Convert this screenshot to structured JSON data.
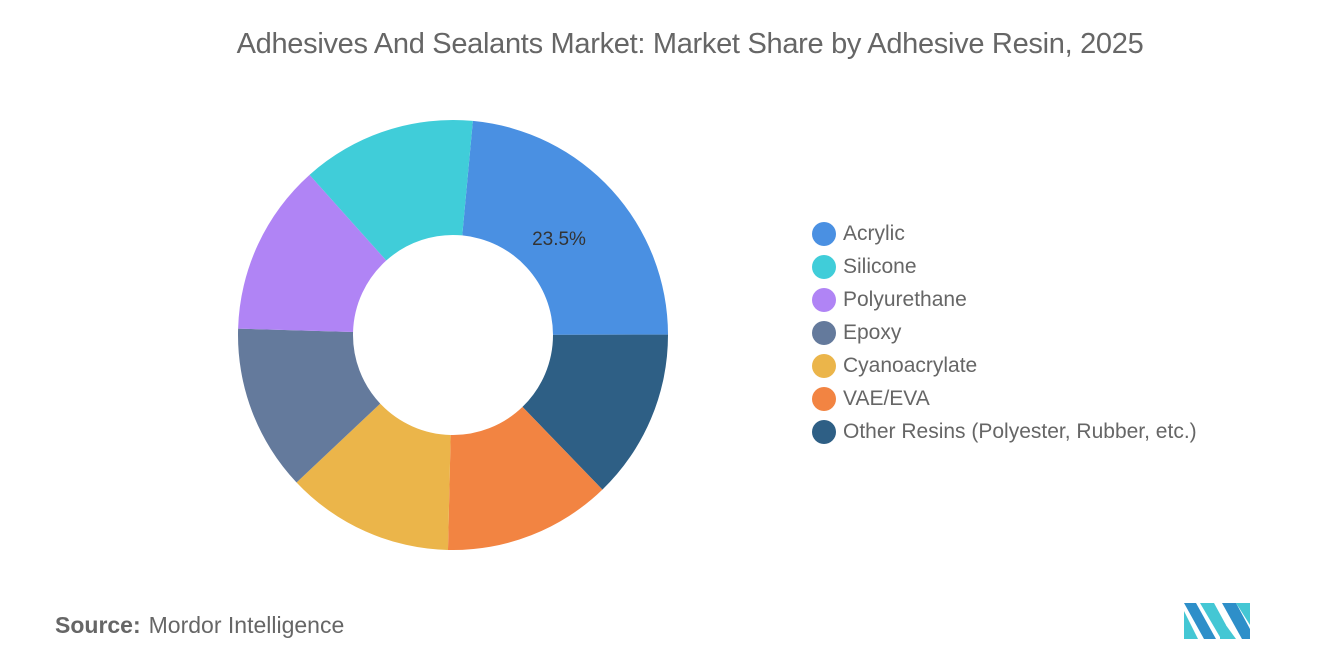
{
  "title": "Adhesives And Sealants Market: Market Share by Adhesive Resin, 2025",
  "source": {
    "label": "Source:",
    "value": "Mordor Intelligence"
  },
  "logo": {
    "name": "Mordor Intelligence logo",
    "colors": [
      "#2e8fc9",
      "#44c7d4"
    ]
  },
  "chart_data": {
    "type": "pie",
    "subtype": "donut",
    "title": "Adhesives And Sealants Market: Market Share by Adhesive Resin, 2025",
    "categories": [
      "Acrylic",
      "Silicone",
      "Polyurethane",
      "Epoxy",
      "Cyanoacrylate",
      "VAE/EVA",
      "Other Resins (Polyester, Rubber, etc.)"
    ],
    "values": [
      23.5,
      13.1,
      12.9,
      12.5,
      12.6,
      12.6,
      12.8
    ],
    "unit": "%",
    "colors": [
      "#4a90e2",
      "#40cdd9",
      "#b084f5",
      "#647a9c",
      "#ebb54a",
      "#f28442",
      "#2e5f85"
    ],
    "data_labels": [
      {
        "category": "Acrylic",
        "text": "23.5%"
      }
    ],
    "legend_position": "right",
    "start_angle_deg": 5.3,
    "direction": "counterclockwise-listing (Acrylic from top going clockwise to right, others counter-clockwise from top)"
  },
  "legend": {
    "items": [
      {
        "label": "Acrylic",
        "color": "#4a90e2"
      },
      {
        "label": "Silicone",
        "color": "#40cdd9"
      },
      {
        "label": "Polyurethane",
        "color": "#b084f5"
      },
      {
        "label": "Epoxy",
        "color": "#647a9c"
      },
      {
        "label": "Cyanoacrylate",
        "color": "#ebb54a"
      },
      {
        "label": "VAE/EVA",
        "color": "#f28442"
      },
      {
        "label": "Other Resins (Polyester, Rubber, etc.)",
        "color": "#2e5f85"
      }
    ]
  }
}
